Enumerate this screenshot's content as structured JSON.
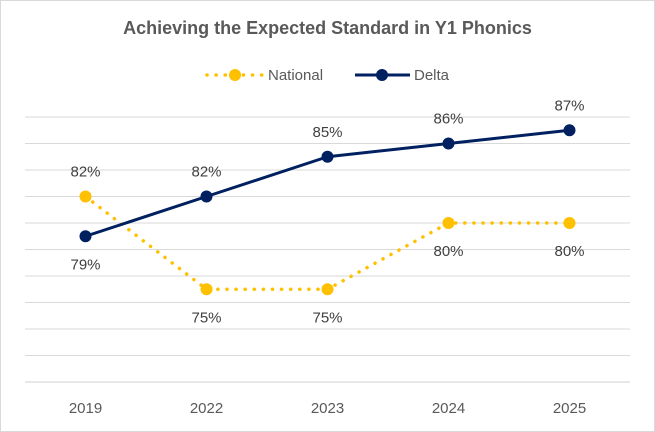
{
  "chart_data": {
    "type": "line",
    "title": "Achieving the Expected Standard in Y1 Phonics",
    "xlabel": "",
    "ylabel": "",
    "categories": [
      "2019",
      "2022",
      "2023",
      "2024",
      "2025"
    ],
    "series": [
      {
        "name": "National",
        "values": [
          82,
          75,
          75,
          80,
          80
        ],
        "color": "#FFC000",
        "style": "dotted",
        "labels": [
          "82%",
          "75%",
          "75%",
          "80%",
          "80%"
        ],
        "label_positions": [
          "above",
          "below",
          "below",
          "below",
          "below"
        ]
      },
      {
        "name": "Delta",
        "values": [
          79,
          82,
          85,
          86,
          87
        ],
        "color": "#002060",
        "style": "solid",
        "labels": [
          "79%",
          "82%",
          "85%",
          "86%",
          "87%"
        ],
        "label_positions": [
          "below",
          "above",
          "above",
          "above",
          "above"
        ]
      }
    ],
    "ylim": [
      68,
      88
    ],
    "ystep": 2,
    "grid": true,
    "y_axis_labels_visible": false,
    "legend": "top"
  }
}
